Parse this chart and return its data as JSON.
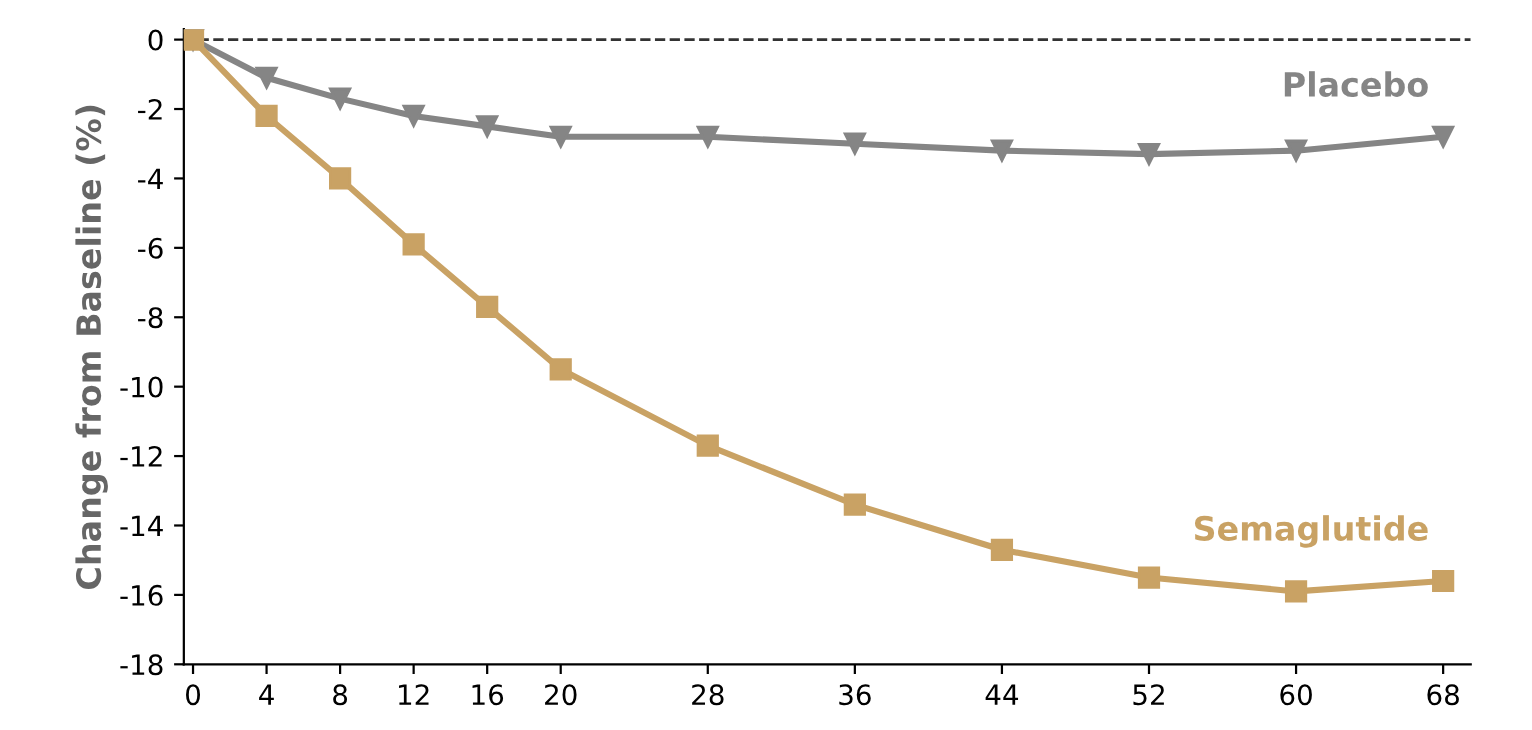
{
  "chart_data": {
    "type": "line",
    "ylabel": "Change from Baseline (%)",
    "x": [
      0,
      4,
      8,
      12,
      16,
      20,
      28,
      36,
      44,
      52,
      60,
      68
    ],
    "series": [
      {
        "name": "Placebo",
        "color": "#858585",
        "marker": "triangle",
        "values": [
          0,
          -1.1,
          -1.7,
          -2.2,
          -2.5,
          -2.8,
          -2.8,
          -3.0,
          -3.2,
          -3.3,
          -3.2,
          -2.8
        ]
      },
      {
        "name": "Semaglutide",
        "color": "#c9a264",
        "marker": "square",
        "values": [
          0,
          -2.2,
          -4.0,
          -5.9,
          -7.7,
          -9.5,
          -11.7,
          -13.4,
          -14.7,
          -15.5,
          -15.9,
          -15.6
        ]
      }
    ],
    "xlim": [
      -0.5,
      69.5
    ],
    "xticks": [
      0,
      4,
      8,
      12,
      16,
      20,
      28,
      36,
      44,
      52,
      60,
      68
    ],
    "ylim": [
      -18,
      0.3
    ],
    "yticks": [
      0,
      -2,
      -4,
      -6,
      -8,
      -10,
      -12,
      -14,
      -16,
      -18
    ],
    "ref_lines": [
      {
        "axis": "y",
        "value": 0,
        "line_style": "dashed",
        "color": "#333333"
      }
    ],
    "grid": false,
    "legend": false,
    "line_style": "solid"
  }
}
